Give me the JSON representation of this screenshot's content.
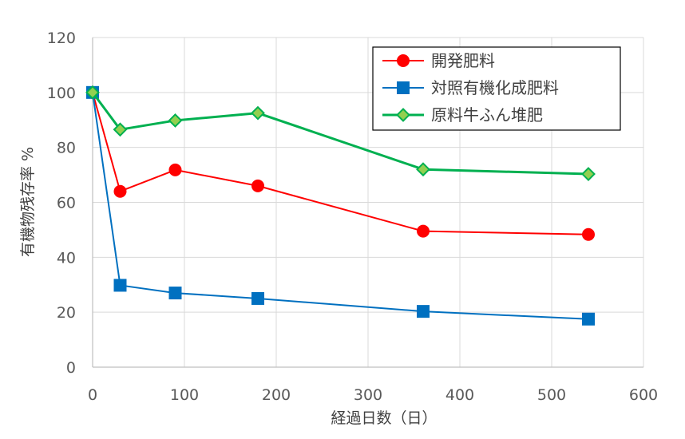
{
  "chart_data": {
    "type": "line",
    "xlabel": "経過日数（日）",
    "ylabel": "有機物残存率 %",
    "xlim": [
      0,
      600
    ],
    "ylim": [
      0,
      120
    ],
    "x_ticks": [
      "0",
      "100",
      "200",
      "300",
      "400",
      "500",
      "600"
    ],
    "y_ticks": [
      "0",
      "20",
      "40",
      "60",
      "80",
      "100",
      "120"
    ],
    "grid": true,
    "legend_position": "top-right",
    "series": [
      {
        "name": "開発肥料",
        "color": "#ff0000",
        "marker": "circle",
        "x": [
          0,
          30,
          90,
          180,
          360,
          540
        ],
        "y": [
          100,
          64,
          71.8,
          66,
          49.5,
          48.3
        ]
      },
      {
        "name": "対照有機化成肥料",
        "color": "#0070c0",
        "marker": "square",
        "x": [
          0,
          30,
          90,
          180,
          360,
          540
        ],
        "y": [
          100,
          29.8,
          27,
          25,
          20.3,
          17.5
        ]
      },
      {
        "name": "原料牛ふん堆肥",
        "color": "#00b050",
        "marker_fill": "#92d050",
        "marker": "diamond",
        "x": [
          0,
          30,
          90,
          180,
          360,
          540
        ],
        "y": [
          100,
          86.5,
          89.8,
          92.5,
          72,
          70.3
        ]
      }
    ]
  }
}
